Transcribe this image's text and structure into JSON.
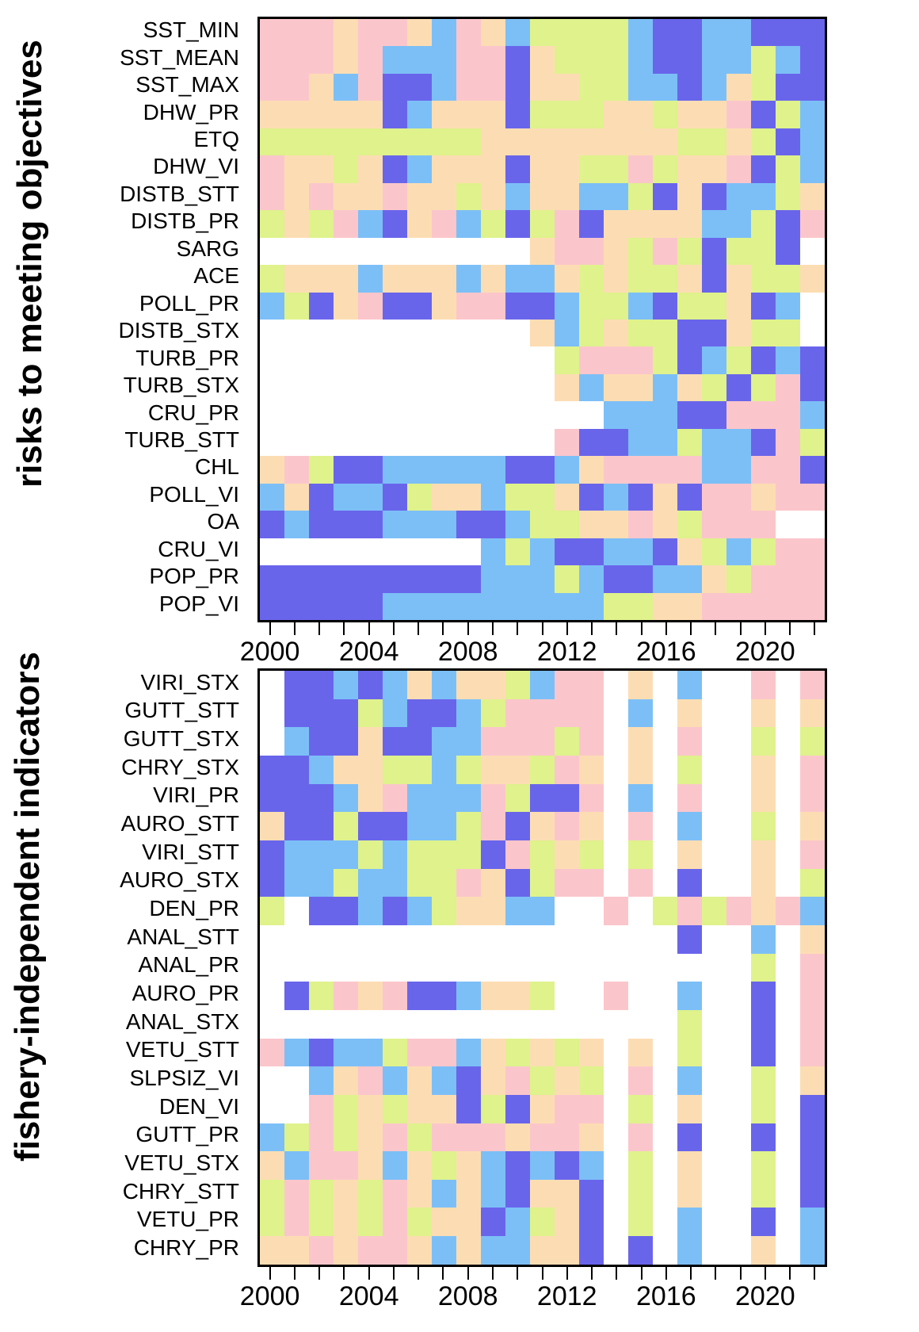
{
  "figure_title": "",
  "chart_data": {
    "type": "heatmap",
    "x_axis": {
      "years_start": 2000,
      "years_end": 2022,
      "n_columns": 23,
      "tick_label_values": [
        "2000",
        "2004",
        "2008",
        "2012",
        "2016",
        "2020"
      ],
      "tick_label_columns": [
        1,
        5,
        9,
        13,
        17,
        21
      ]
    },
    "palette": {
      "D": "#6965EB",
      "B": "#7CBFF7",
      "G": "#DFF28C",
      "O": "#FCDDB3",
      "P": "#FBC6CB",
      "W": "#FFFFFF"
    },
    "palette_legend": {
      "D": "dark-blue-cell",
      "B": "light-blue-cell",
      "G": "yellow-green-cell",
      "O": "peach-cell",
      "P": "pink-cell",
      "W": "no-data-cell"
    },
    "panels": [
      {
        "id": "top",
        "y_title": "risks to meeting objectives",
        "rows": [
          {
            "label": "SST_MIN",
            "cells": "PPPOPPOBPOBGGGGBDDBBDDD"
          },
          {
            "label": "SST_MEAN",
            "cells": "PPPOPBBBPPDOGGGBDDBBGBD"
          },
          {
            "label": "SST_MAX",
            "cells": "PPOBPDDBPPDOOGGBBDBOGDD"
          },
          {
            "label": "DHW_PR",
            "cells": "OOOOODBOOODGGGOOGOOPDGB"
          },
          {
            "label": "ETQ",
            "cells": "GGGGGGGGGOOOOOOOOGGOGDB"
          },
          {
            "label": "DHW_VI",
            "cells": "POOGODBOOODOOGGPGOOPDGB"
          },
          {
            "label": "DISTB_STT",
            "cells": "POPOOPOOGOBOOBBGDODBBGO"
          },
          {
            "label": "DISTB_PR",
            "cells": "GOGPBDOPBGDGPDOOOOBBGDP"
          },
          {
            "label": "SARG",
            "cells": "WWWWWWWWWWWOPPOGPGDGGDW"
          },
          {
            "label": "ACE",
            "cells": "GOOOBOOOBOBBOGOGGODOGGO"
          },
          {
            "label": "POLL_PR",
            "cells": "BGDOPDDOPPDDBGGBDGGODBW"
          },
          {
            "label": "DISTB_STX",
            "cells": "WWWWWWWWWWWOBGOGGDDOGGW"
          },
          {
            "label": "TURB_PR",
            "cells": "WWWWWWWWWWWWGPPPGDBGDBD"
          },
          {
            "label": "TURB_STX",
            "cells": "WWWWWWWWWWWWOBOOBOGDGPD"
          },
          {
            "label": "CRU_PR",
            "cells": "WWWWWWWWWWWWWWBBBDDPPPB"
          },
          {
            "label": "TURB_STT",
            "cells": "WWWWWWWWWWWWPDDBBGBBDPG"
          },
          {
            "label": "CHL",
            "cells": "OPGDDBBBBBDDBOPPPPBBPPD"
          },
          {
            "label": "POLL_VI",
            "cells": "BODBBDGOOBGGODBDODPPOPP"
          },
          {
            "label": "OA",
            "cells": "DBDDDBBBDDBGGOOPOGPPPWW"
          },
          {
            "label": "CRU_VI",
            "cells": "WWWWWWWWWBGBDDBBDOGBGPP"
          },
          {
            "label": "POP_PR",
            "cells": "DDDDDDDDDBBBGBDDBBOGPPP"
          },
          {
            "label": "POP_VI",
            "cells": "DDDDDBBBBBBBBBGGOOPPPPP"
          }
        ]
      },
      {
        "id": "bottom",
        "y_title": "fishery-independent indicators",
        "rows": [
          {
            "label": "VIRI_STX",
            "cells": "WDDBDBOBOOGBPPWOWBWWPWP"
          },
          {
            "label": "GUTT_STT",
            "cells": "WDDDGBDDBGPPPPWBWOWWOWO"
          },
          {
            "label": "GUTT_STX",
            "cells": "WBDDODDBBPPPGPWOWPWWGWG"
          },
          {
            "label": "CHRY_STX",
            "cells": "DDBOOGGBGOOGPOWOWGWWOWP"
          },
          {
            "label": "VIRI_PR",
            "cells": "DDDBOPBBBPGDDPWBWPWWOWP"
          },
          {
            "label": "AURO_STT",
            "cells": "ODDGDDBBGPDOPOWPWBWWGWO"
          },
          {
            "label": "VIRI_STT",
            "cells": "DBBBGBGGGDPGOGWGWOWWOWP"
          },
          {
            "label": "AURO_STX",
            "cells": "DBBGBBGGPODGPPWPWDWWOWG"
          },
          {
            "label": "DEN_PR",
            "cells": "GWDDBDBGOOBBWWPWGPGPOPB"
          },
          {
            "label": "ANAL_STT",
            "cells": "WWWWWWWWWWWWWWWWWDWWBWO"
          },
          {
            "label": "ANAL_PR",
            "cells": "WWWWWWWWWWWWWWWWWWWWGWP"
          },
          {
            "label": "AURO_PR",
            "cells": "WDGPOPDDBOOGWWPWWBWWDWP"
          },
          {
            "label": "ANAL_STX",
            "cells": "WWWWWWWWWWWWWWWWWGWWDWP"
          },
          {
            "label": "VETU_STT",
            "cells": "PBDBBGPPBOGOGOWOWGWWDWP"
          },
          {
            "label": "SLPSIZ_VI",
            "cells": "WWBOPBOBDOPGOGWPWBWWGWO"
          },
          {
            "label": "DEN_VI",
            "cells": "WWPGOGOODGDOPPWGWOWWGWD"
          },
          {
            "label": "GUTT_PR",
            "cells": "BGPGOPGPPPOPPOWPWDWWDWD"
          },
          {
            "label": "VETU_STX",
            "cells": "OBPPOBOGOBDBDBWGWOWWGWD"
          },
          {
            "label": "CHRY_STT",
            "cells": "GPGOGPOBOBDOODWGWOWWGWD"
          },
          {
            "label": "VETU_PR",
            "cells": "GPGOGPGOODBGODWGWBWWDWB"
          },
          {
            "label": "CHRY_PR",
            "cells": "OOPOPPOBOBBOODWDWBWWOWB"
          }
        ]
      }
    ]
  }
}
